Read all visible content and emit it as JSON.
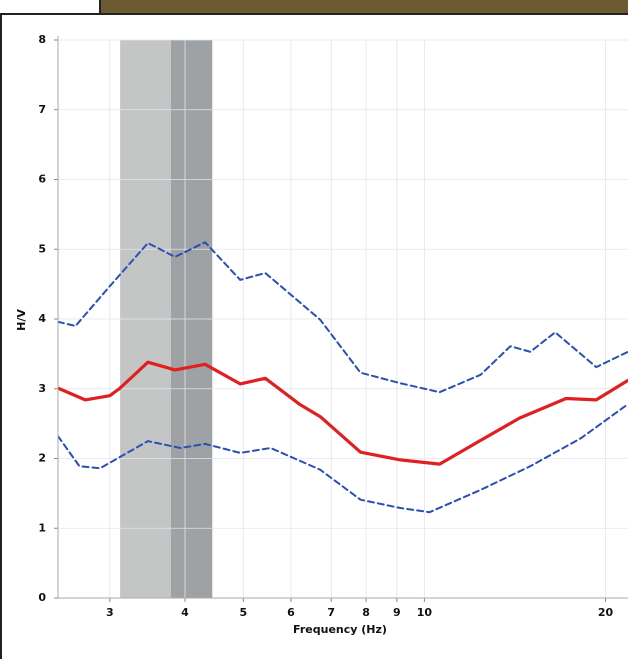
{
  "chart_data": {
    "type": "line",
    "xlabel": "Frequency (Hz)",
    "ylabel": "H/V",
    "xscale": "log",
    "xlim": [
      2.46,
      21.8
    ],
    "ylim": [
      0,
      8
    ],
    "xticks": [
      3,
      4,
      5,
      6,
      7,
      8,
      9,
      10,
      20
    ],
    "yticks": [
      0,
      1,
      2,
      3,
      4,
      5,
      6,
      7,
      8
    ],
    "grid": true,
    "bands": [
      {
        "from": 3.12,
        "to": 3.79,
        "color": "#c4c6c6"
      },
      {
        "from": 3.79,
        "to": 4.44,
        "color": "#9fa2a4"
      }
    ],
    "series": [
      {
        "color": "#2a4fb5",
        "dash": true,
        "x": [
          2.46,
          2.63,
          3.0,
          3.47,
          3.85,
          4.32,
          4.94,
          5.44,
          6.71,
          7.83,
          9.12,
          10.6,
          12.4,
          13.9,
          15.0,
          16.5,
          19.3,
          21.8
        ],
        "values": [
          3.96,
          3.9,
          4.47,
          5.09,
          4.89,
          5.1,
          4.56,
          4.66,
          3.99,
          3.23,
          3.08,
          2.95,
          3.2,
          3.61,
          3.53,
          3.81,
          3.31,
          3.53
        ]
      },
      {
        "color": "#e02020",
        "dash": false,
        "x": [
          2.46,
          2.73,
          3.0,
          3.12,
          3.47,
          3.85,
          4.32,
          4.94,
          5.44,
          6.22,
          6.71,
          7.83,
          9.12,
          10.6,
          12.4,
          14.4,
          17.2,
          19.3,
          21.8
        ],
        "values": [
          3.01,
          2.84,
          2.9,
          3.01,
          3.38,
          3.27,
          3.35,
          3.07,
          3.15,
          2.77,
          2.6,
          2.09,
          1.98,
          1.92,
          2.26,
          2.58,
          2.86,
          2.84,
          3.12
        ]
      },
      {
        "color": "#2a4fb5",
        "dash": true,
        "x": [
          2.46,
          2.67,
          2.89,
          3.47,
          3.93,
          4.32,
          4.94,
          5.55,
          6.71,
          7.83,
          9.12,
          10.2,
          12.4,
          15.0,
          18.2,
          21.8
        ],
        "values": [
          2.32,
          1.89,
          1.86,
          2.25,
          2.15,
          2.21,
          2.08,
          2.15,
          1.84,
          1.41,
          1.29,
          1.23,
          1.55,
          1.89,
          2.29,
          2.78
        ]
      }
    ]
  }
}
